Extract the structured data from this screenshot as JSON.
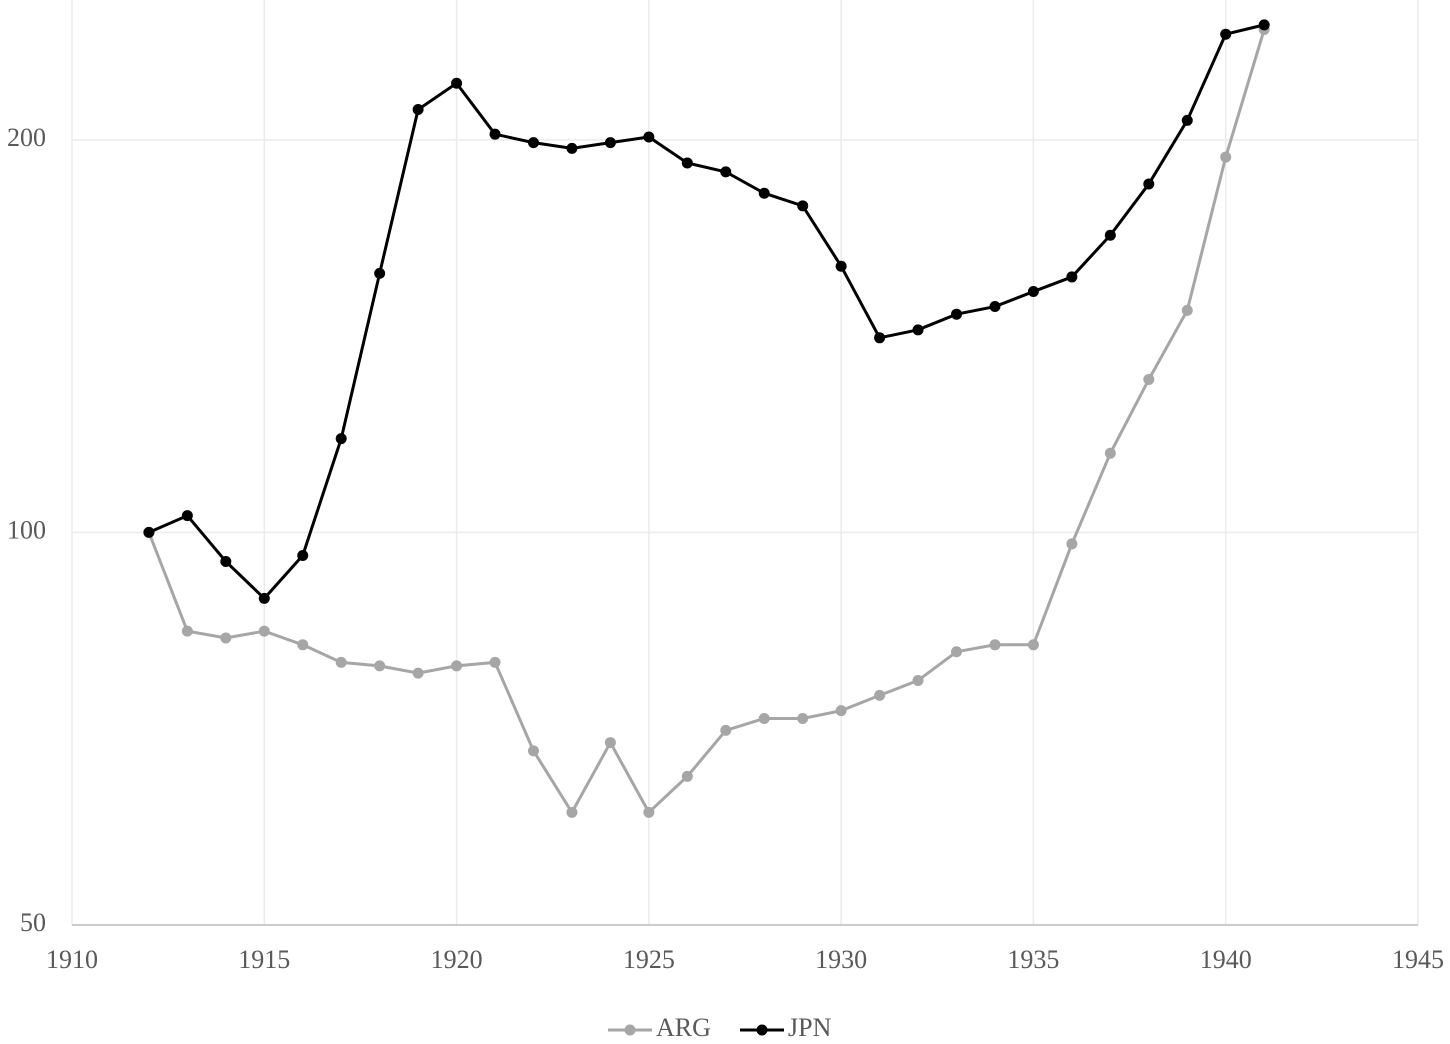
{
  "chart_data": {
    "type": "line",
    "x": [
      1912,
      1913,
      1914,
      1915,
      1916,
      1917,
      1918,
      1919,
      1920,
      1921,
      1922,
      1923,
      1924,
      1925,
      1926,
      1927,
      1928,
      1929,
      1930,
      1931,
      1932,
      1933,
      1934,
      1935,
      1936,
      1937,
      1938,
      1939,
      1940,
      1941
    ],
    "series": [
      {
        "name": "ARG",
        "color": "#a6a6a6",
        "values": [
          100,
          84,
          83,
          84,
          82,
          79.5,
          79,
          78,
          79,
          79.5,
          68,
          61,
          69,
          61,
          65,
          70.5,
          72,
          72,
          73,
          75,
          77,
          81,
          82,
          82,
          98,
          115,
          131,
          148,
          194,
          243
        ]
      },
      {
        "name": "JPN",
        "color": "#000000",
        "values": [
          100,
          103,
          95,
          89,
          96,
          118,
          158,
          211,
          221,
          202,
          199,
          197,
          199,
          201,
          192,
          189,
          182,
          178,
          160,
          141,
          143,
          147,
          149,
          153,
          157,
          169,
          185,
          207,
          241,
          245
        ]
      }
    ],
    "xlim": [
      1910,
      1945
    ],
    "xticks": [
      1910,
      1915,
      1920,
      1925,
      1930,
      1935,
      1940,
      1945
    ],
    "ylim": [
      50,
      256
    ],
    "yticks": [
      50,
      100,
      200
    ],
    "log_y": true,
    "grid": true,
    "legend": "bottom"
  }
}
